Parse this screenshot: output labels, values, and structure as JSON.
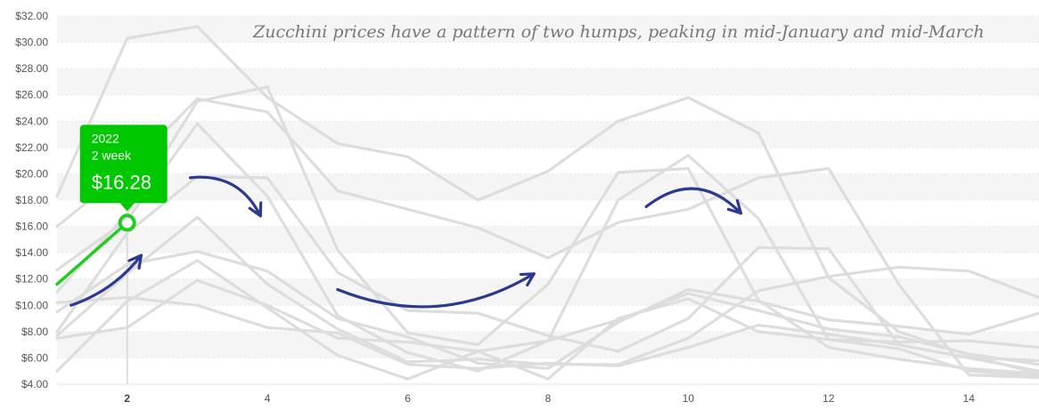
{
  "chart_data": {
    "type": "line",
    "title": "",
    "xlabel": "",
    "ylabel": "",
    "annotation": "Zucchini prices have a pattern of two humps, peaking in mid-January and mid-March",
    "x": [
      1,
      2,
      3,
      4,
      5,
      6,
      7,
      8,
      9,
      10,
      11,
      12,
      13,
      14,
      15
    ],
    "xlim": [
      1,
      15
    ],
    "ylim": [
      4,
      32
    ],
    "y_ticks": [
      "$4.00",
      "$6.00",
      "$8.00",
      "$10.00",
      "$12.00",
      "$14.00",
      "$16.00",
      "$18.00",
      "$20.00",
      "$22.00",
      "$24.00",
      "$26.00",
      "$28.00",
      "$30.00",
      "$32.00"
    ],
    "x_ticks": [
      "2",
      "4",
      "6",
      "8",
      "10",
      "12",
      "14"
    ],
    "active_x": 2,
    "grid": true,
    "legend": "none",
    "background_series": [
      {
        "values": [
          18.3,
          30.3,
          31.2,
          25.8,
          22.3,
          21.3,
          18.0,
          20.2,
          24.0,
          25.8,
          23.1,
          12.1,
          8.0,
          6.2,
          4.8
        ]
      },
      {
        "values": [
          16.0,
          20.3,
          25.7,
          24.7,
          18.7,
          17.3,
          15.9,
          13.6,
          16.3,
          17.3,
          19.7,
          20.4,
          11.6,
          4.7,
          4.5
        ]
      },
      {
        "values": [
          11.0,
          17.0,
          25.5,
          26.6,
          14.2,
          7.9,
          7.0,
          11.6,
          20.1,
          20.4,
          10.4,
          6.8,
          5.9,
          5.2,
          4.8
        ]
      },
      {
        "values": [
          12.7,
          16.5,
          23.8,
          18.3,
          9.2,
          6.4,
          5.0,
          7.3,
          18.0,
          21.4,
          16.6,
          7.4,
          6.7,
          5.0,
          4.6
        ]
      },
      {
        "values": [
          8.0,
          15.5,
          19.8,
          19.7,
          12.5,
          9.6,
          9.4,
          7.7,
          6.5,
          9.0,
          14.4,
          14.3,
          7.0,
          6.0,
          5.0
        ]
      },
      {
        "values": [
          9.5,
          13.1,
          14.1,
          12.6,
          9.0,
          7.6,
          5.6,
          5.2,
          8.7,
          11.2,
          10.3,
          8.9,
          8.4,
          7.8,
          9.4
        ]
      },
      {
        "values": [
          7.7,
          12.4,
          16.7,
          11.6,
          8.2,
          5.7,
          5.9,
          5.5,
          5.5,
          7.5,
          11.1,
          12.2,
          12.9,
          12.6,
          10.6
        ]
      },
      {
        "values": [
          5.0,
          10.3,
          13.4,
          9.8,
          6.2,
          4.4,
          6.5,
          4.4,
          9.0,
          10.5,
          8.0,
          7.4,
          7.2,
          7.3,
          6.8
        ]
      },
      {
        "values": [
          7.5,
          8.3,
          11.9,
          10.0,
          7.5,
          7.2,
          6.5,
          7.3,
          8.9,
          10.9,
          9.6,
          8.2,
          7.6,
          6.3,
          5.5
        ]
      },
      {
        "values": [
          10.2,
          10.6,
          10.0,
          8.3,
          7.9,
          5.5,
          5.2,
          5.6,
          5.4,
          6.8,
          8.5,
          7.8,
          7.0,
          6.0,
          5.8
        ]
      }
    ],
    "highlight_series": {
      "values": [
        11.6,
        16.28
      ]
    },
    "tooltip": {
      "year": "2022",
      "week": "2 week",
      "price": "$16.28",
      "x": 2,
      "y": 16.28
    },
    "arrows": [
      {
        "from": [
          1.2,
          10.0
        ],
        "to": [
          2.2,
          13.8
        ],
        "bend": 0.15
      },
      {
        "from": [
          2.9,
          19.7
        ],
        "to": [
          3.9,
          16.8
        ],
        "bend": -0.35
      },
      {
        "from": [
          5.0,
          11.2
        ],
        "to": [
          7.8,
          12.4
        ],
        "bend": 0.25
      },
      {
        "from": [
          9.4,
          17.5
        ],
        "to": [
          10.75,
          17.0
        ],
        "bend": -0.45
      }
    ],
    "colors": {
      "background_line": "#dddddd",
      "highlight_line": "#22cc22",
      "tooltip_bg": "#00c800",
      "arrow": "#2c3a8f",
      "grid_band": "#f5f5f5",
      "grid_line": "#e6e6e6",
      "crosshair": "#dcdcdc"
    }
  }
}
